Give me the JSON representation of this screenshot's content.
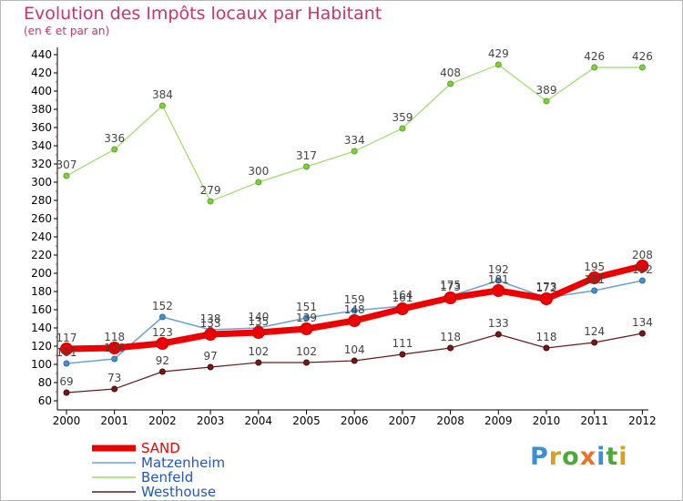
{
  "chart_data": {
    "type": "line",
    "title": "Evolution des Impôts locaux par Habitant",
    "subtitle": "(en € et par an)",
    "x": [
      "2000",
      "2001",
      "2002",
      "2003",
      "2004",
      "2005",
      "2006",
      "2007",
      "2008",
      "2009",
      "2010",
      "2011",
      "2012"
    ],
    "ylim": [
      60,
      440
    ],
    "ytick_step": 20,
    "grid": false,
    "legend_position": "bottom-left",
    "series": [
      {
        "name": "SAND",
        "color": "#ee0000",
        "values": [
          117,
          118,
          123,
          133,
          135,
          139,
          148,
          161,
          173,
          181,
          172,
          195,
          208
        ]
      },
      {
        "name": "Matzenheim",
        "color": "#6aa3d2",
        "values": [
          101,
          106,
          152,
          138,
          140,
          151,
          159,
          164,
          175,
          192,
          173,
          181,
          192
        ]
      },
      {
        "name": "Benfeld",
        "color": "#99dd66",
        "values": [
          307,
          336,
          384,
          279,
          300,
          317,
          334,
          359,
          408,
          429,
          389,
          426,
          426
        ]
      },
      {
        "name": "Westhouse",
        "color": "#6b1a1a",
        "values": [
          69,
          73,
          92,
          97,
          102,
          102,
          104,
          111,
          118,
          133,
          118,
          124,
          134
        ]
      }
    ]
  },
  "legend": {
    "labels": [
      "SAND",
      "Matzenheim",
      "Benfeld",
      "Westhouse"
    ]
  },
  "brand": {
    "letters": [
      "P",
      "r",
      "o",
      "x",
      "i",
      "t",
      "i"
    ],
    "colors": [
      "#3a8fd8",
      "#d9a020",
      "#4fa83c",
      "#e8742c",
      "#3a8fd8",
      "#4fa83c",
      "#d9a020"
    ]
  }
}
